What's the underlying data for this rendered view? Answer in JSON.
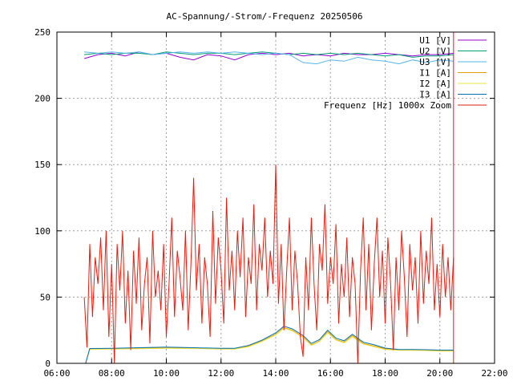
{
  "chart_data": {
    "type": "line",
    "title": "AC-Spannung/-Strom/-Frequenz 20250506",
    "xlabel": "",
    "ylabel": "",
    "xlim": [
      6,
      22
    ],
    "ylim": [
      0,
      250
    ],
    "x_ticks": [
      {
        "value": 6,
        "label": "06:00"
      },
      {
        "value": 8,
        "label": "08:00"
      },
      {
        "value": 10,
        "label": "10:00"
      },
      {
        "value": 12,
        "label": "12:00"
      },
      {
        "value": 14,
        "label": "14:00"
      },
      {
        "value": 16,
        "label": "16:00"
      },
      {
        "value": 18,
        "label": "18:00"
      },
      {
        "value": 20,
        "label": "20:00"
      },
      {
        "value": 22,
        "label": "22:00"
      }
    ],
    "y_ticks": [
      {
        "value": 0,
        "label": "0"
      },
      {
        "value": 50,
        "label": "50"
      },
      {
        "value": 100,
        "label": "100"
      },
      {
        "value": 150,
        "label": "150"
      },
      {
        "value": 200,
        "label": "200"
      },
      {
        "value": 250,
        "label": "250"
      }
    ],
    "grid": true,
    "legend_position": "top-right",
    "series": [
      {
        "name": "U1 [V]",
        "color": "#9400d3",
        "x": [
          7.0,
          7.5,
          8.0,
          8.5,
          9.0,
          9.5,
          10.0,
          10.5,
          11.0,
          11.5,
          12.0,
          12.5,
          13.0,
          13.5,
          14.0,
          14.5,
          15.0,
          15.5,
          16.0,
          16.5,
          17.0,
          17.5,
          18.0,
          18.5,
          19.0,
          19.5,
          20.0,
          20.5
        ],
        "y": [
          230,
          233,
          234,
          232,
          235,
          233,
          234,
          231,
          229,
          233,
          232,
          229,
          233,
          234,
          233,
          234,
          232,
          233,
          232,
          234,
          233,
          233,
          234,
          233,
          232,
          233,
          233,
          234
        ]
      },
      {
        "name": "U2 [V]",
        "color": "#009e73",
        "x": [
          7.0,
          7.5,
          8.0,
          8.5,
          9.0,
          9.5,
          10.0,
          10.5,
          11.0,
          11.5,
          12.0,
          12.5,
          13.0,
          13.5,
          14.0,
          14.5,
          15.0,
          15.5,
          16.0,
          16.5,
          17.0,
          17.5,
          18.0,
          18.5,
          19.0,
          19.5,
          20.0,
          20.5
        ],
        "y": [
          233,
          234,
          233,
          234,
          234,
          233,
          235,
          234,
          233,
          234,
          234,
          233,
          234,
          235,
          234,
          233,
          234,
          233,
          234,
          233,
          234,
          233,
          232,
          233,
          231,
          232,
          232,
          233
        ]
      },
      {
        "name": "U3 [V]",
        "color": "#56b4e9",
        "x": [
          7.0,
          7.5,
          8.0,
          8.5,
          9.0,
          9.5,
          10.0,
          10.5,
          11.0,
          11.5,
          12.0,
          12.5,
          13.0,
          13.5,
          14.0,
          14.5,
          15.0,
          15.5,
          16.0,
          16.5,
          17.0,
          17.5,
          18.0,
          18.5,
          19.0,
          19.5,
          20.0,
          20.5
        ],
        "y": [
          235,
          234,
          235,
          234,
          235,
          233,
          234,
          235,
          234,
          235,
          234,
          235,
          234,
          233,
          234,
          233,
          227,
          226,
          229,
          228,
          231,
          229,
          228,
          226,
          229,
          227,
          229,
          228
        ]
      },
      {
        "name": "I1 [A]",
        "color": "#e69f00",
        "x": [
          7.05,
          7.2,
          8.0,
          9.0,
          10.0,
          11.0,
          12.0,
          12.5,
          13.0,
          13.5,
          14.0,
          14.3,
          14.6,
          15.0,
          15.3,
          15.6,
          15.9,
          16.2,
          16.5,
          16.8,
          17.2,
          17.6,
          18.0,
          18.5,
          19.0,
          19.5,
          20.0,
          20.5
        ],
        "y": [
          0,
          11,
          11,
          11.5,
          12,
          11.5,
          11,
          11,
          13,
          17,
          22,
          27,
          25,
          20,
          14,
          17,
          24,
          18,
          16,
          21,
          15,
          13,
          11,
          10,
          10,
          10,
          9.5,
          9.5
        ]
      },
      {
        "name": "I2 [A]",
        "color": "#f0e442",
        "x": [
          7.05,
          7.2,
          8.0,
          9.0,
          10.0,
          11.0,
          12.0,
          12.5,
          13.0,
          13.5,
          14.0,
          14.3,
          14.6,
          15.0,
          15.3,
          15.6,
          15.9,
          16.2,
          16.5,
          16.8,
          17.2,
          17.6,
          18.0,
          18.5,
          19.0,
          19.5,
          20.0,
          20.5
        ],
        "y": [
          0,
          10.5,
          10.8,
          11,
          11.3,
          11.2,
          10.8,
          10.8,
          12.5,
          16.5,
          21.5,
          26.5,
          24.5,
          19.5,
          13.5,
          16.5,
          23,
          17.5,
          15.5,
          20,
          14.5,
          12.5,
          10.5,
          9.8,
          9.8,
          9.6,
          9.2,
          9.2
        ]
      },
      {
        "name": "I3 [A]",
        "color": "#0072b2",
        "x": [
          7.05,
          7.2,
          8.0,
          9.0,
          10.0,
          11.0,
          12.0,
          12.5,
          13.0,
          13.5,
          14.0,
          14.3,
          14.6,
          15.0,
          15.3,
          15.6,
          15.9,
          16.2,
          16.5,
          16.8,
          17.2,
          17.6,
          18.0,
          18.5,
          19.0,
          19.5,
          20.0,
          20.5
        ],
        "y": [
          0,
          11.2,
          11.3,
          11.8,
          12.2,
          11.8,
          11.3,
          11.3,
          13.5,
          17.5,
          23,
          28,
          26,
          21,
          15,
          18,
          25,
          19,
          17,
          22,
          16,
          14,
          11.5,
          10.5,
          10.5,
          10.3,
          10,
          10
        ]
      },
      {
        "name": "Frequenz [Hz] 1000x Zoom",
        "color": "#e51e10",
        "x": [
          7.0,
          7.1,
          7.2,
          7.3,
          7.4,
          7.5,
          7.6,
          7.7,
          7.8,
          7.9,
          8.0,
          8.1,
          8.2,
          8.3,
          8.4,
          8.5,
          8.6,
          8.7,
          8.8,
          8.9,
          9.0,
          9.1,
          9.2,
          9.3,
          9.4,
          9.5,
          9.6,
          9.7,
          9.8,
          9.9,
          10.0,
          10.1,
          10.2,
          10.3,
          10.4,
          10.5,
          10.6,
          10.7,
          10.8,
          10.9,
          11.0,
          11.1,
          11.2,
          11.3,
          11.4,
          11.5,
          11.6,
          11.7,
          11.8,
          11.9,
          12.0,
          12.1,
          12.2,
          12.3,
          12.4,
          12.5,
          12.6,
          12.7,
          12.8,
          12.9,
          13.0,
          13.1,
          13.2,
          13.3,
          13.4,
          13.5,
          13.6,
          13.7,
          13.8,
          13.9,
          14.0,
          14.1,
          14.2,
          14.3,
          14.4,
          14.5,
          14.6,
          14.7,
          14.8,
          14.9,
          15.0,
          15.1,
          15.2,
          15.3,
          15.4,
          15.5,
          15.6,
          15.7,
          15.8,
          15.9,
          16.0,
          16.1,
          16.2,
          16.3,
          16.4,
          16.5,
          16.6,
          16.7,
          16.8,
          16.9,
          17.0,
          17.1,
          17.2,
          17.3,
          17.4,
          17.5,
          17.6,
          17.7,
          17.8,
          17.9,
          18.0,
          18.1,
          18.2,
          18.3,
          18.4,
          18.5,
          18.6,
          18.7,
          18.8,
          18.9,
          19.0,
          19.1,
          19.2,
          19.3,
          19.4,
          19.5,
          19.6,
          19.7,
          19.8,
          19.9,
          20.0,
          20.1,
          20.2,
          20.3,
          20.4,
          20.5
        ],
        "y": [
          50,
          12,
          90,
          35,
          80,
          60,
          95,
          40,
          100,
          20,
          75,
          0,
          90,
          55,
          100,
          30,
          70,
          10,
          85,
          45,
          95,
          25,
          60,
          80,
          15,
          100,
          50,
          70,
          40,
          90,
          20,
          60,
          110,
          35,
          85,
          65,
          40,
          100,
          25,
          75,
          140,
          55,
          90,
          30,
          80,
          60,
          20,
          115,
          45,
          95,
          70,
          30,
          125,
          55,
          85,
          40,
          100,
          65,
          110,
          35,
          80,
          60,
          120,
          40,
          90,
          70,
          110,
          50,
          85,
          60,
          150,
          45,
          90,
          25,
          70,
          110,
          40,
          85,
          60,
          20,
          5,
          80,
          40,
          110,
          60,
          25,
          90,
          70,
          120,
          45,
          80,
          60,
          105,
          30,
          75,
          50,
          95,
          35,
          80,
          60,
          0,
          70,
          110,
          40,
          90,
          25,
          75,
          110,
          50,
          85,
          30,
          95,
          60,
          10,
          80,
          40,
          100,
          65,
          20,
          90,
          55,
          80,
          30,
          100,
          45,
          85,
          60,
          110,
          40,
          75,
          35,
          90,
          50,
          80,
          40,
          80
        ]
      }
    ],
    "markers": [
      {
        "name": "",
        "color": "#e51e10",
        "x": 20.5,
        "y_from": 0,
        "y_to": 250
      }
    ]
  }
}
